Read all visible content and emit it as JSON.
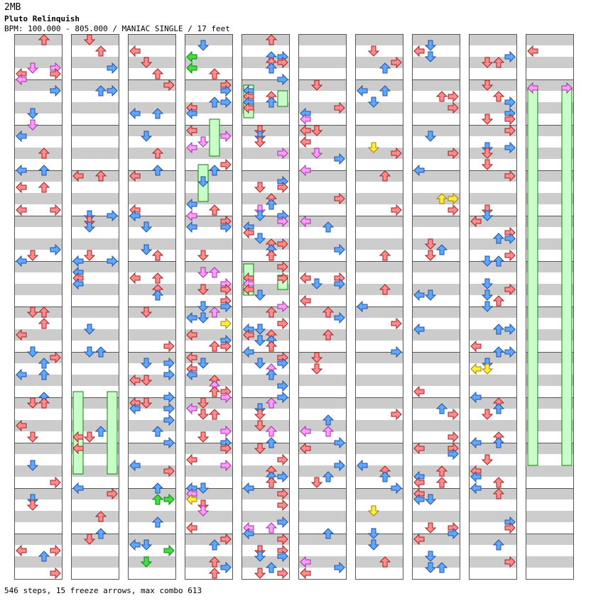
{
  "header": {
    "artist": "2MB",
    "title": "Pluto Relinquish",
    "meta": "BPM: 100.000 - 805.000 / MANIAC SINGLE / 17 feet"
  },
  "footer": {
    "stats": "546 steps, 15 freeze arrows, max combo 613"
  },
  "chart_data": {
    "type": "step_chart",
    "columns": 10,
    "measures_per_column": 12,
    "lanes": [
      "left",
      "down",
      "up",
      "right"
    ],
    "colors": {
      "quarter": "#ff8c8c",
      "eighth": "#60a8ff",
      "sixteenth": "#ff9cff",
      "other": "#ffee40",
      "freeze_body": "#c8ffc8",
      "freeze_note": "#40e040",
      "band_dark": "#cccccc",
      "band_light": "#ffffff"
    },
    "freeze_count": 15
  }
}
